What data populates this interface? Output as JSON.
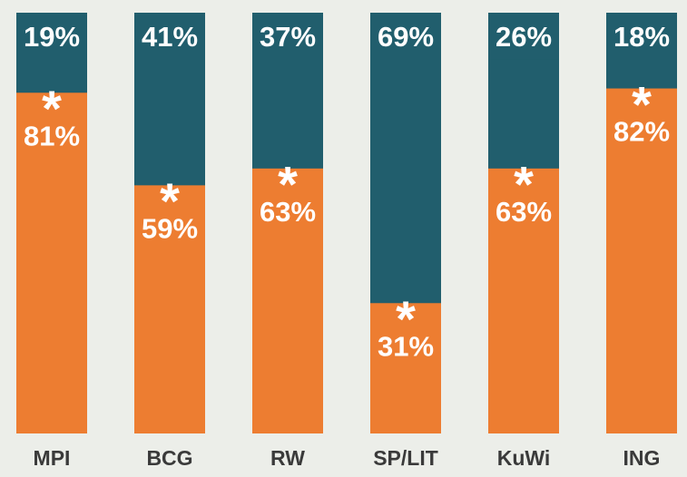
{
  "chart_data": {
    "type": "stacked_bar",
    "categories": [
      "MPI",
      "BCG",
      "RW",
      "SP/LIT",
      "KuWi",
      "ING"
    ],
    "series": [
      {
        "color": "#ed7d31",
        "values": [
          81,
          59,
          63,
          31,
          63,
          82
        ],
        "value_labels": [
          "81%",
          "59%",
          "63%",
          "31%",
          "63%",
          "82%"
        ]
      },
      {
        "color": "#215e6d",
        "values": [
          19,
          41,
          37,
          69,
          26,
          18
        ],
        "value_labels": [
          "19%",
          "41%",
          "37%",
          "69%",
          "26%",
          "18%"
        ]
      }
    ],
    "annotation": "*",
    "ylim": [
      0,
      100
    ]
  }
}
